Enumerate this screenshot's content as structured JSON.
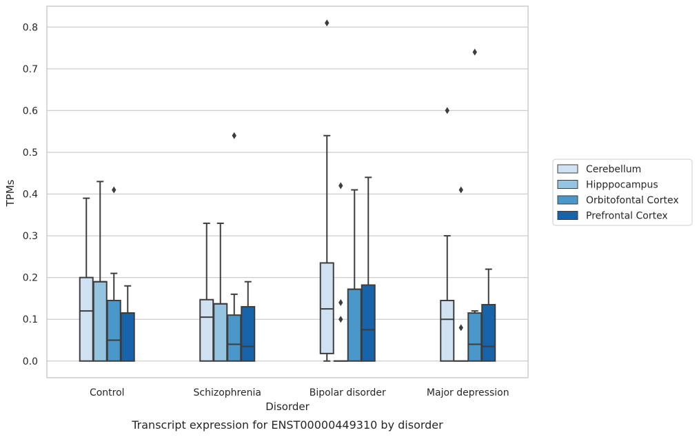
{
  "chart_data": {
    "type": "boxplot",
    "title": "",
    "caption": "Transcript expression for ENST00000449310 by disorder",
    "xlabel": "Disorder",
    "ylabel": "TPMs",
    "ylim": [
      -0.04,
      0.85
    ],
    "yticks": [
      0.0,
      0.1,
      0.2,
      0.3,
      0.4,
      0.5,
      0.6,
      0.7,
      0.8
    ],
    "ytick_labels": [
      "0.0",
      "0.1",
      "0.2",
      "0.3",
      "0.4",
      "0.5",
      "0.6",
      "0.7",
      "0.8"
    ],
    "grid": true,
    "legend_position": "right",
    "categories": [
      "Control",
      "Schizophrenia",
      "Bipolar disorder",
      "Major depression"
    ],
    "series": [
      {
        "name": "Cerebellum",
        "color": "#d0e1f2",
        "boxes": [
          {
            "whislo": 0.0,
            "q1": 0.0,
            "med": 0.12,
            "q3": 0.2,
            "whishi": 0.39,
            "fliers": []
          },
          {
            "whislo": 0.0,
            "q1": 0.0,
            "med": 0.105,
            "q3": 0.147,
            "whishi": 0.33,
            "fliers": []
          },
          {
            "whislo": 0.0,
            "q1": 0.018,
            "med": 0.125,
            "q3": 0.235,
            "whishi": 0.54,
            "fliers": [
              0.81
            ]
          },
          {
            "whislo": 0.0,
            "q1": 0.0,
            "med": 0.1,
            "q3": 0.145,
            "whishi": 0.3,
            "fliers": [
              0.6
            ]
          }
        ]
      },
      {
        "name": "Hipppocampus",
        "color": "#94c4df",
        "boxes": [
          {
            "whislo": 0.0,
            "q1": 0.0,
            "med": 0.19,
            "q3": 0.19,
            "whishi": 0.43,
            "fliers": []
          },
          {
            "whislo": 0.0,
            "q1": 0.0,
            "med": 0.137,
            "q3": 0.137,
            "whishi": 0.33,
            "fliers": []
          },
          {
            "whislo": 0.0,
            "q1": 0.0,
            "med": 0.0,
            "q3": 0.0,
            "whishi": 0.0,
            "fliers": [
              0.1,
              0.14,
              0.42
            ]
          },
          {
            "whislo": 0.0,
            "q1": 0.0,
            "med": 0.0,
            "q3": 0.0,
            "whishi": 0.0,
            "fliers": [
              0.08,
              0.41
            ]
          }
        ]
      },
      {
        "name": "Orbitofontal Cortex",
        "color": "#4a98c9",
        "boxes": [
          {
            "whislo": 0.0,
            "q1": 0.0,
            "med": 0.05,
            "q3": 0.145,
            "whishi": 0.21,
            "fliers": [
              0.41
            ]
          },
          {
            "whislo": 0.0,
            "q1": 0.0,
            "med": 0.04,
            "q3": 0.11,
            "whishi": 0.16,
            "fliers": [
              0.54
            ]
          },
          {
            "whislo": 0.0,
            "q1": 0.0,
            "med": 0.172,
            "q3": 0.172,
            "whishi": 0.41,
            "fliers": []
          },
          {
            "whislo": 0.0,
            "q1": 0.0,
            "med": 0.04,
            "q3": 0.115,
            "whishi": 0.12,
            "fliers": [
              0.74
            ]
          }
        ]
      },
      {
        "name": "Prefrontal Cortex",
        "color": "#1764ab",
        "boxes": [
          {
            "whislo": 0.0,
            "q1": 0.0,
            "med": 0.115,
            "q3": 0.115,
            "whishi": 0.18,
            "fliers": []
          },
          {
            "whislo": 0.0,
            "q1": 0.0,
            "med": 0.035,
            "q3": 0.13,
            "whishi": 0.19,
            "fliers": []
          },
          {
            "whislo": 0.0,
            "q1": 0.0,
            "med": 0.075,
            "q3": 0.182,
            "whishi": 0.44,
            "fliers": []
          },
          {
            "whislo": 0.0,
            "q1": 0.0,
            "med": 0.035,
            "q3": 0.135,
            "whishi": 0.22,
            "fliers": []
          }
        ]
      }
    ]
  }
}
